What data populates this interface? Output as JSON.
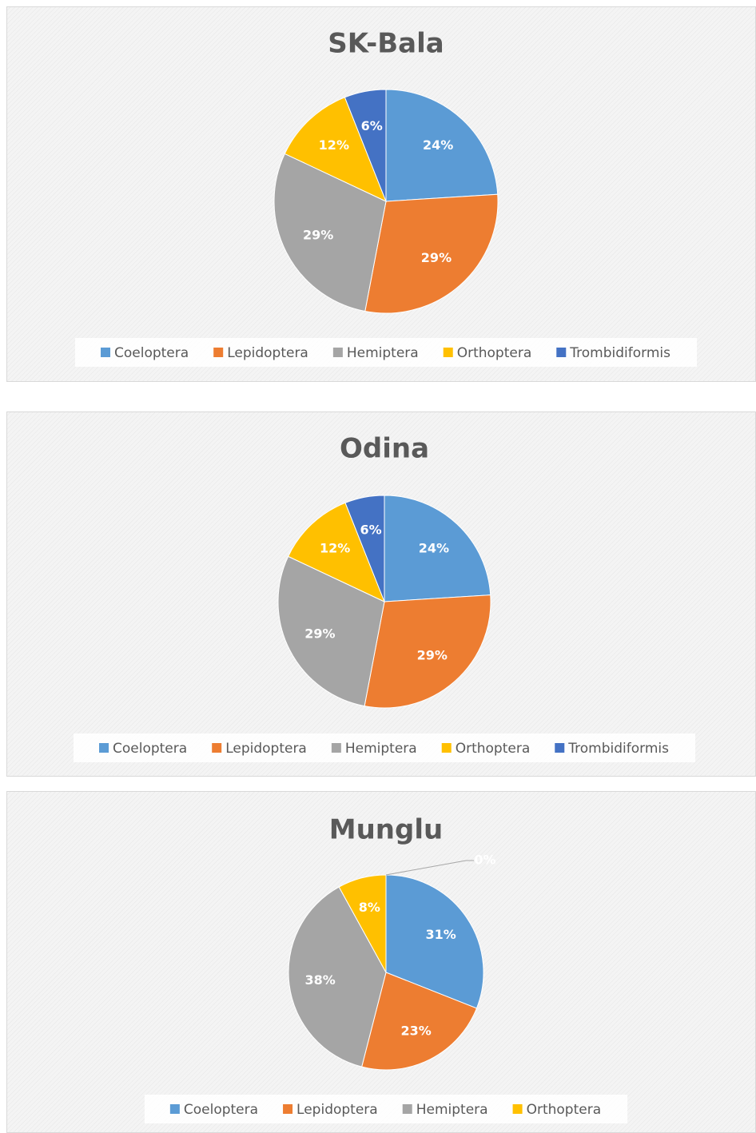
{
  "chart_data": [
    {
      "type": "pie",
      "title": "SK-Bala",
      "categories": [
        "Coeloptera",
        "Lepidoptera",
        "Hemiptera",
        "Orthoptera",
        "Trombidiformis"
      ],
      "values": [
        24,
        29,
        29,
        12,
        6
      ],
      "value_labels": [
        "24%",
        "29%",
        "29%",
        "12%",
        "6%"
      ],
      "colors": [
        "#5b9bd5",
        "#ed7d31",
        "#a5a5a5",
        "#ffc000",
        "#4472c4"
      ],
      "legend": "bottom"
    },
    {
      "type": "pie",
      "title": "Odina",
      "categories": [
        "Coeloptera",
        "Lepidoptera",
        "Hemiptera",
        "Orthoptera",
        "Trombidiformis"
      ],
      "values": [
        24,
        29,
        29,
        12,
        6
      ],
      "value_labels": [
        "24%",
        "29%",
        "29%",
        "12%",
        "6%"
      ],
      "colors": [
        "#5b9bd5",
        "#ed7d31",
        "#a5a5a5",
        "#ffc000",
        "#4472c4"
      ],
      "legend": "bottom"
    },
    {
      "type": "pie",
      "title": "Munglu",
      "categories": [
        "Coeloptera",
        "Lepidoptera",
        "Hemiptera",
        "Orthoptera",
        null
      ],
      "values": [
        31,
        23,
        38,
        8,
        0
      ],
      "value_labels": [
        "31%",
        "23%",
        "38%",
        "8%",
        "0%"
      ],
      "colors": [
        "#5b9bd5",
        "#ed7d31",
        "#a5a5a5",
        "#ffc000",
        "#4472c4"
      ],
      "legend": "bottom"
    }
  ]
}
